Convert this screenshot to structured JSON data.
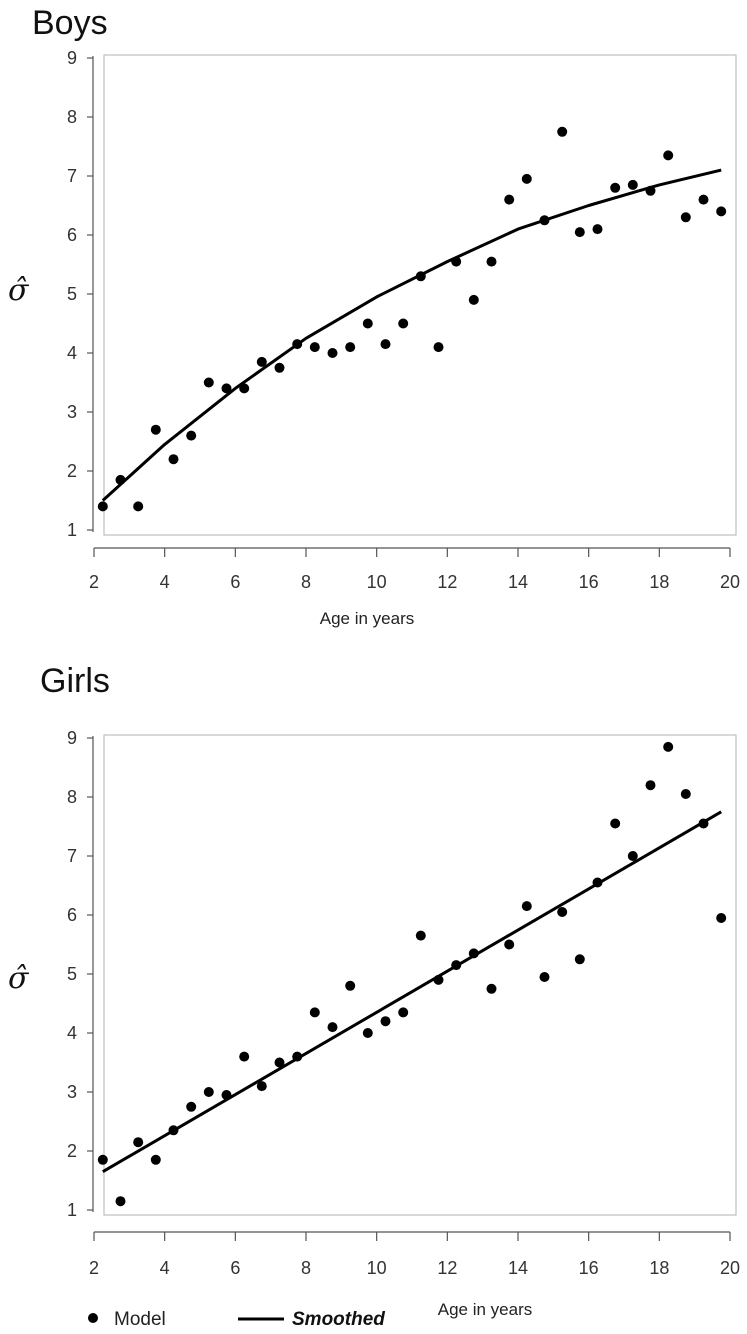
{
  "chart_data": [
    {
      "type": "scatter",
      "title": "Boys",
      "xlabel": "Age in years",
      "ylabel": "σ̂",
      "xlim": [
        2,
        20
      ],
      "ylim": [
        1,
        9
      ],
      "xticks": [
        2,
        4,
        6,
        8,
        10,
        12,
        14,
        16,
        18,
        20
      ],
      "yticks": [
        1,
        2,
        3,
        4,
        5,
        6,
        7,
        8,
        9
      ],
      "grid": false,
      "series": [
        {
          "name": "Model",
          "kind": "points",
          "x": [
            2.25,
            2.75,
            3.25,
            3.75,
            4.25,
            4.75,
            5.25,
            5.75,
            6.25,
            6.75,
            7.25,
            7.75,
            8.25,
            8.75,
            9.25,
            9.75,
            10.25,
            10.75,
            11.25,
            11.75,
            12.25,
            12.75,
            13.25,
            13.75,
            14.25,
            14.75,
            15.25,
            15.75,
            16.25,
            16.75,
            17.25,
            17.75,
            18.25,
            18.75,
            19.25,
            19.75
          ],
          "y": [
            1.4,
            1.85,
            1.4,
            2.7,
            2.2,
            2.6,
            3.5,
            3.4,
            3.4,
            3.85,
            3.75,
            4.15,
            4.1,
            4.0,
            4.1,
            4.5,
            4.15,
            4.5,
            5.3,
            4.1,
            5.55,
            4.9,
            5.55,
            6.6,
            6.95,
            6.25,
            7.75,
            6.05,
            6.1,
            6.8,
            6.85,
            6.75,
            7.35,
            6.3,
            6.6,
            6.4
          ]
        },
        {
          "name": "Smoothed",
          "kind": "line",
          "x": [
            2.25,
            4,
            6,
            8,
            10,
            12,
            14,
            16,
            18,
            19.75
          ],
          "y": [
            1.5,
            2.45,
            3.4,
            4.25,
            4.95,
            5.55,
            6.1,
            6.5,
            6.85,
            7.1
          ]
        }
      ]
    },
    {
      "type": "scatter",
      "title": "Girls",
      "xlabel": "Age in years",
      "ylabel": "σ̂",
      "xlim": [
        2,
        20
      ],
      "ylim": [
        1,
        9
      ],
      "xticks": [
        2,
        4,
        6,
        8,
        10,
        12,
        14,
        16,
        18,
        20
      ],
      "yticks": [
        1,
        2,
        3,
        4,
        5,
        6,
        7,
        8,
        9
      ],
      "grid": false,
      "series": [
        {
          "name": "Model",
          "kind": "points",
          "x": [
            2.25,
            2.75,
            3.25,
            3.75,
            4.25,
            4.75,
            5.25,
            5.75,
            6.25,
            6.75,
            7.25,
            7.75,
            8.25,
            8.75,
            9.25,
            9.75,
            10.25,
            10.75,
            11.25,
            11.75,
            12.25,
            12.75,
            13.25,
            13.75,
            14.25,
            14.75,
            15.25,
            15.75,
            16.25,
            16.75,
            17.25,
            17.75,
            18.25,
            18.75,
            19.25,
            19.75
          ],
          "y": [
            1.85,
            1.15,
            2.15,
            1.85,
            2.35,
            2.75,
            3.0,
            2.95,
            3.6,
            3.1,
            3.5,
            3.6,
            4.35,
            4.1,
            4.8,
            4.0,
            4.2,
            4.35,
            5.65,
            4.9,
            5.15,
            5.35,
            4.75,
            5.5,
            6.15,
            4.95,
            6.05,
            5.25,
            6.55,
            7.55,
            7.0,
            8.2,
            8.85,
            8.05,
            7.55,
            5.95
          ]
        },
        {
          "name": "Smoothed",
          "kind": "line",
          "x": [
            2.25,
            19.75
          ],
          "y": [
            1.65,
            7.75
          ]
        }
      ]
    }
  ],
  "legend": {
    "model_label": "Model",
    "smoothed_label": "Smoothed",
    "placement": "bottom-left"
  },
  "colors": {
    "points": "#000000",
    "line": "#000000",
    "frame": "#bdbdbd",
    "axis": "#555555"
  }
}
